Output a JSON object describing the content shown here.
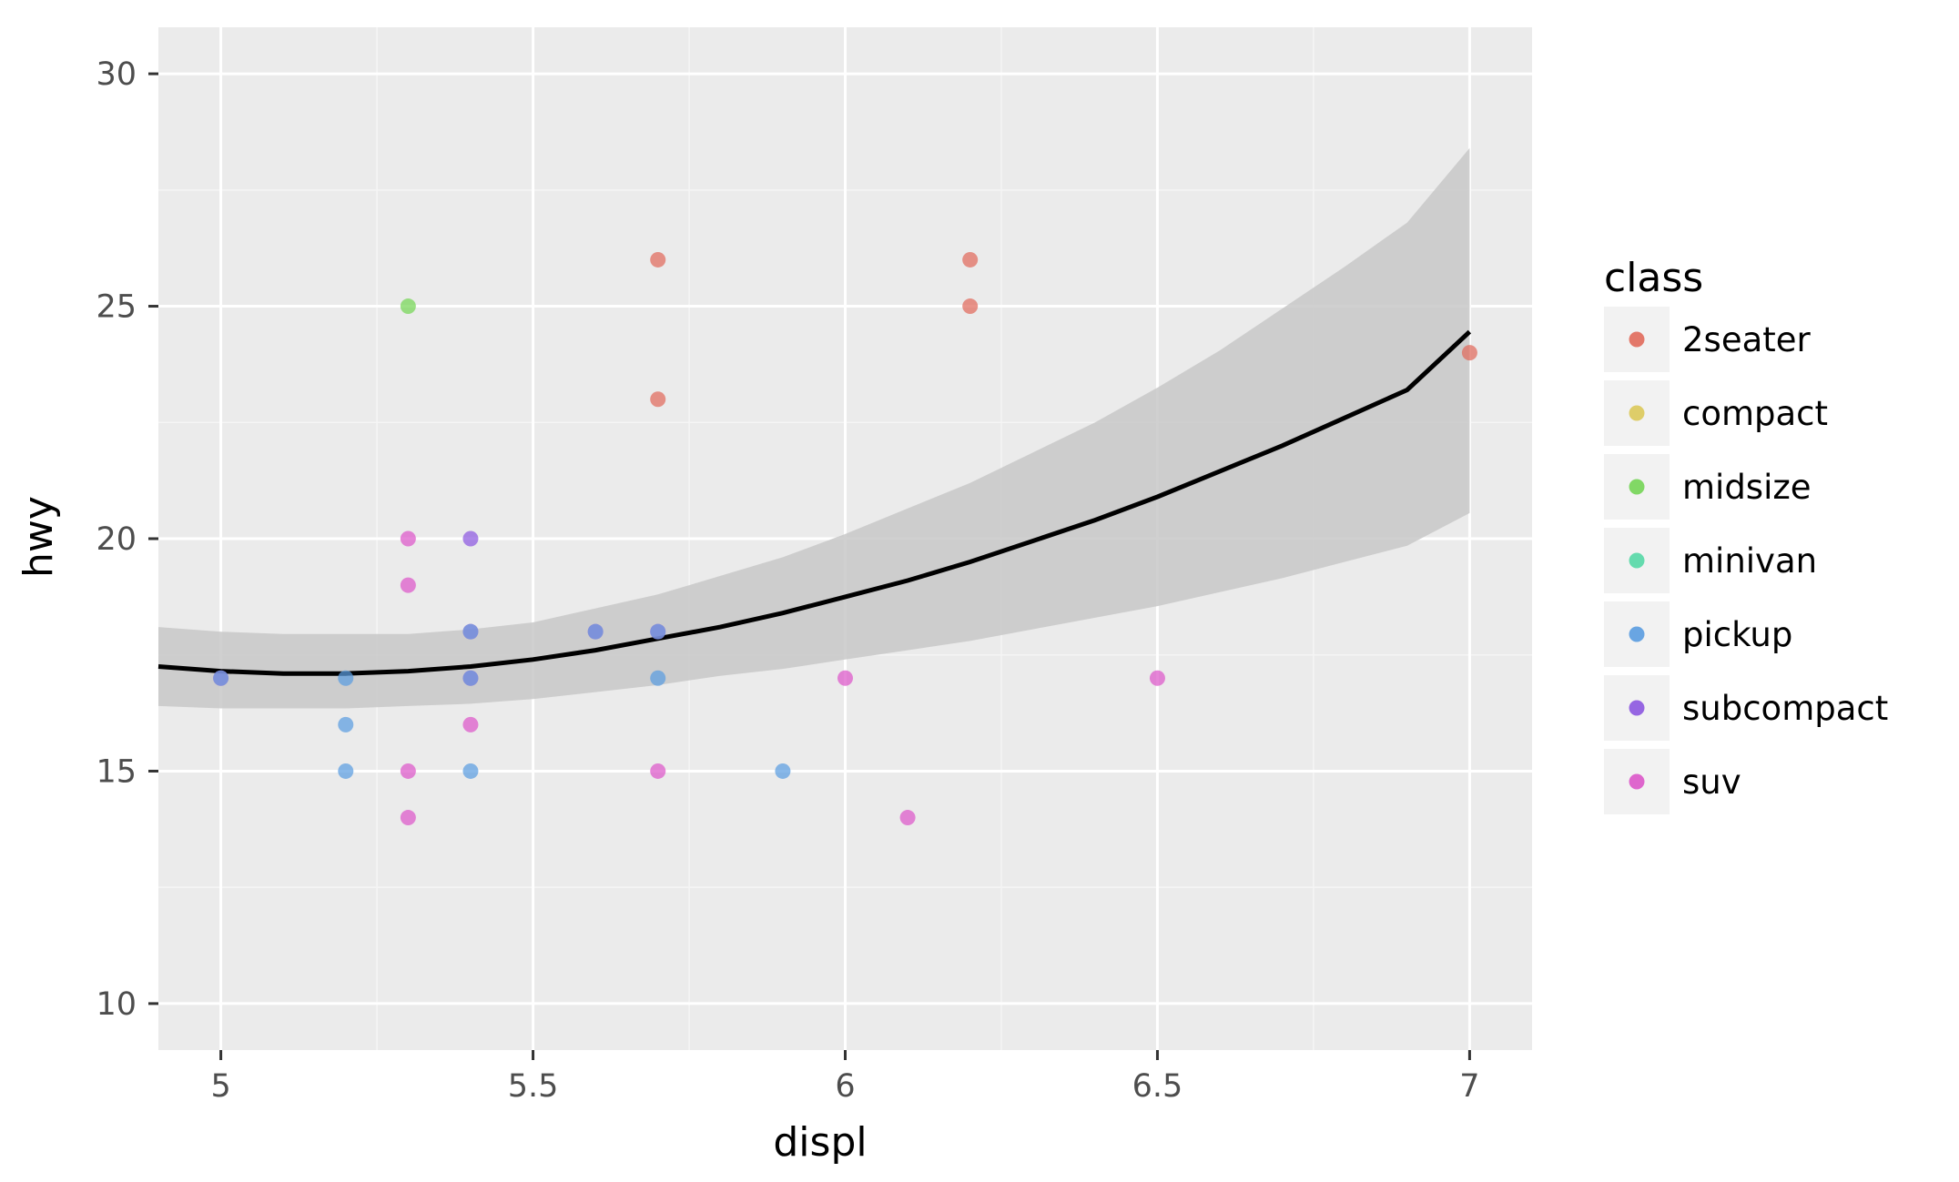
{
  "chart_data": {
    "type": "scatter",
    "xlabel": "displ",
    "ylabel": "hwy",
    "xlim": [
      4.9,
      7.1
    ],
    "ylim": [
      9,
      31
    ],
    "x_ticks": [
      5,
      5.5,
      6,
      6.5,
      7
    ],
    "x_tick_labels": [
      "5",
      "5.5",
      "6",
      "6.5",
      "7"
    ],
    "y_ticks": [
      10,
      15,
      20,
      25,
      30
    ],
    "y_tick_labels": [
      "10",
      "15",
      "20",
      "25",
      "30"
    ],
    "grid": true,
    "legend": {
      "title": "class",
      "placement": "right",
      "entries": [
        {
          "label": "2seater",
          "color": "#e16a5b"
        },
        {
          "label": "compact",
          "color": "#dcc95a"
        },
        {
          "label": "midsize",
          "color": "#74d555"
        },
        {
          "label": "minivan",
          "color": "#55d8a6"
        },
        {
          "label": "pickup",
          "color": "#5a9ce0"
        },
        {
          "label": "subcompact",
          "color": "#8c57e0"
        },
        {
          "label": "suv",
          "color": "#dc56c9"
        }
      ]
    },
    "points": [
      {
        "x": 5.0,
        "y": 17,
        "class": "suv"
      },
      {
        "x": 5.0,
        "y": 17,
        "class": "pickup"
      },
      {
        "x": 5.2,
        "y": 17,
        "class": "pickup"
      },
      {
        "x": 5.2,
        "y": 16,
        "class": "pickup"
      },
      {
        "x": 5.2,
        "y": 15,
        "class": "pickup"
      },
      {
        "x": 5.3,
        "y": 25,
        "class": "midsize"
      },
      {
        "x": 5.3,
        "y": 20,
        "class": "suv"
      },
      {
        "x": 5.3,
        "y": 19,
        "class": "suv"
      },
      {
        "x": 5.3,
        "y": 15,
        "class": "suv"
      },
      {
        "x": 5.3,
        "y": 14,
        "class": "suv"
      },
      {
        "x": 5.4,
        "y": 20,
        "class": "subcompact"
      },
      {
        "x": 5.4,
        "y": 18,
        "class": "suv"
      },
      {
        "x": 5.4,
        "y": 18,
        "class": "pickup"
      },
      {
        "x": 5.4,
        "y": 17,
        "class": "suv"
      },
      {
        "x": 5.4,
        "y": 17,
        "class": "pickup"
      },
      {
        "x": 5.4,
        "y": 16,
        "class": "suv"
      },
      {
        "x": 5.4,
        "y": 15,
        "class": "pickup"
      },
      {
        "x": 5.6,
        "y": 18,
        "class": "suv"
      },
      {
        "x": 5.6,
        "y": 18,
        "class": "pickup"
      },
      {
        "x": 5.7,
        "y": 26,
        "class": "2seater"
      },
      {
        "x": 5.7,
        "y": 23,
        "class": "2seater"
      },
      {
        "x": 5.7,
        "y": 18,
        "class": "suv"
      },
      {
        "x": 5.7,
        "y": 18,
        "class": "pickup"
      },
      {
        "x": 5.7,
        "y": 17,
        "class": "pickup"
      },
      {
        "x": 5.7,
        "y": 15,
        "class": "suv"
      },
      {
        "x": 5.9,
        "y": 15,
        "class": "pickup"
      },
      {
        "x": 6.0,
        "y": 17,
        "class": "suv"
      },
      {
        "x": 6.1,
        "y": 14,
        "class": "suv"
      },
      {
        "x": 6.2,
        "y": 26,
        "class": "2seater"
      },
      {
        "x": 6.2,
        "y": 25,
        "class": "2seater"
      },
      {
        "x": 6.5,
        "y": 17,
        "class": "suv"
      },
      {
        "x": 7.0,
        "y": 24,
        "class": "2seater"
      }
    ],
    "smooth": {
      "x": [
        4.9,
        5.0,
        5.1,
        5.2,
        5.3,
        5.4,
        5.5,
        5.6,
        5.7,
        5.8,
        5.9,
        6.0,
        6.1,
        6.2,
        6.3,
        6.4,
        6.5,
        6.6,
        6.7,
        6.8,
        6.9,
        7.0
      ],
      "y": [
        17.25,
        17.15,
        17.1,
        17.1,
        17.15,
        17.25,
        17.4,
        17.6,
        17.85,
        18.1,
        18.4,
        18.75,
        19.1,
        19.5,
        19.95,
        20.4,
        20.9,
        21.45,
        22.0,
        22.6,
        23.2,
        24.45
      ],
      "ymin": [
        16.4,
        16.35,
        16.35,
        16.35,
        16.4,
        16.45,
        16.55,
        16.7,
        16.85,
        17.05,
        17.2,
        17.4,
        17.6,
        17.8,
        18.05,
        18.3,
        18.55,
        18.85,
        19.15,
        19.5,
        19.85,
        20.55
      ],
      "ymax": [
        18.1,
        18.0,
        17.95,
        17.95,
        17.95,
        18.05,
        18.2,
        18.5,
        18.8,
        19.2,
        19.6,
        20.1,
        20.65,
        21.2,
        21.85,
        22.5,
        23.25,
        24.05,
        24.95,
        25.85,
        26.8,
        28.4
      ],
      "color": "#000000",
      "band_color": "#c8c8c8"
    },
    "colors": {
      "panel": "#ebebeb",
      "grid_major": "#ffffff",
      "grid_minor": "#f5f5f5",
      "legend_key_bg": "#f2f2f2"
    }
  }
}
